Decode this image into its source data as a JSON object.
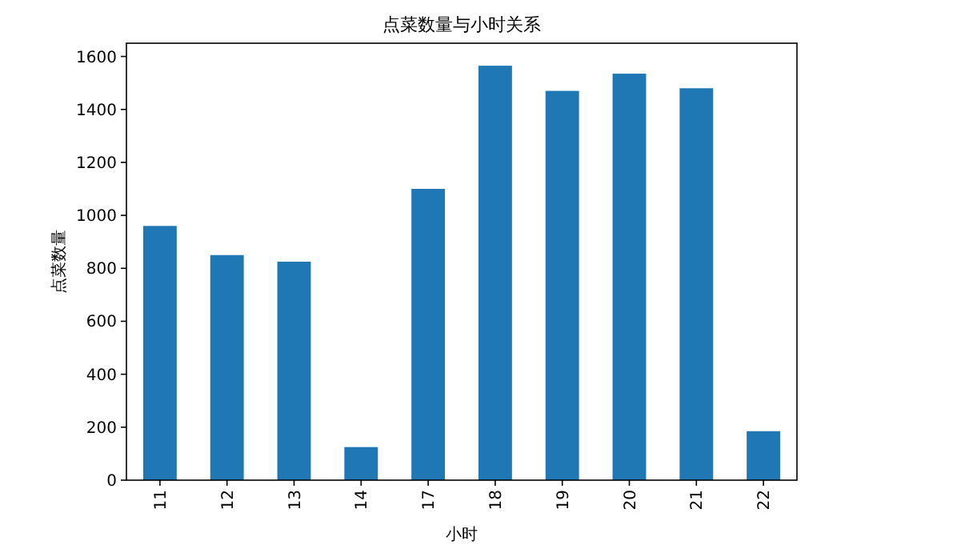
{
  "chart_data": {
    "type": "bar",
    "title": "点菜数量与小时关系",
    "xlabel": "小时",
    "ylabel": "点菜数量",
    "categories": [
      "11",
      "12",
      "13",
      "14",
      "17",
      "18",
      "19",
      "20",
      "21",
      "22"
    ],
    "values": [
      960,
      850,
      825,
      125,
      1100,
      1565,
      1470,
      1535,
      1480,
      185
    ],
    "color": "#1f77b4",
    "ylim": [
      0,
      1650
    ],
    "yticks": [
      0,
      200,
      400,
      600,
      800,
      1000,
      1200,
      1400,
      1600
    ],
    "grid": false
  }
}
